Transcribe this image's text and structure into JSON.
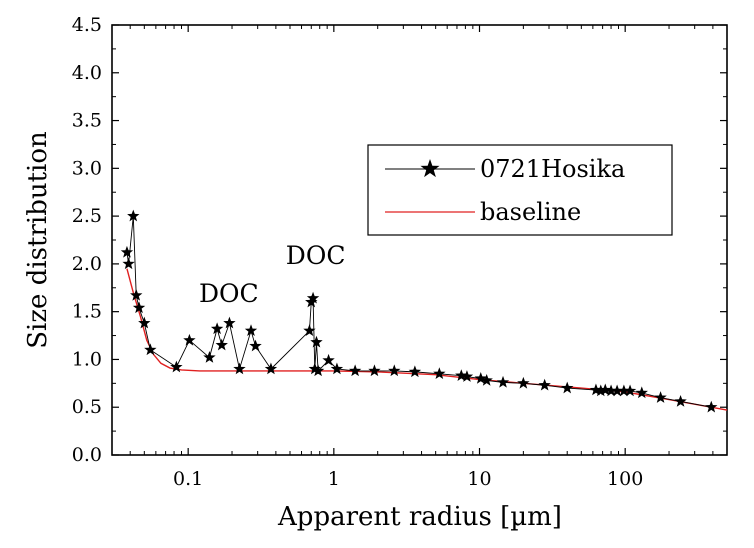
{
  "chart_data": {
    "type": "line",
    "xscale": "log",
    "xlabel": "Apparent radius [µm]",
    "ylabel": "Size distribution",
    "xlim": [
      0.03,
      500
    ],
    "ylim": [
      0.0,
      4.5
    ],
    "x_ticks": [
      0.1,
      1,
      10,
      100
    ],
    "x_tick_labels": [
      "0.1",
      "1",
      "10",
      "100"
    ],
    "y_ticks": [
      0.0,
      0.5,
      1.0,
      1.5,
      2.0,
      2.5,
      3.0,
      3.5,
      4.0,
      4.5
    ],
    "y_tick_labels": [
      "0.0",
      "0.5",
      "1.0",
      "1.5",
      "2.0",
      "2.5",
      "3.0",
      "3.5",
      "4.0",
      "4.5"
    ],
    "grid": false,
    "legend": {
      "position": "top-right",
      "entries": [
        "0721Hosika",
        "baseline"
      ]
    },
    "annotations": [
      {
        "text": "DOC",
        "x": 0.19,
        "y": 1.6
      },
      {
        "text": "DOC",
        "x": 0.75,
        "y": 2.0
      }
    ],
    "series": [
      {
        "name": "0721Hosika",
        "color": "#000000",
        "marker": "star",
        "x": [
          0.038,
          0.039,
          0.042,
          0.044,
          0.046,
          0.05,
          0.055,
          0.083,
          0.102,
          0.14,
          0.158,
          0.17,
          0.192,
          0.225,
          0.27,
          0.29,
          0.37,
          0.68,
          0.7,
          0.72,
          0.74,
          0.76,
          0.78,
          0.92,
          1.05,
          1.4,
          1.9,
          2.6,
          3.6,
          5.3,
          7.5,
          8.2,
          10.2,
          11.2,
          14.5,
          20,
          28,
          40,
          63,
          68,
          73,
          80,
          88,
          98,
          108,
          130,
          175,
          240,
          390
        ],
        "y": [
          2.12,
          2.0,
          2.5,
          1.67,
          1.54,
          1.38,
          1.1,
          0.92,
          1.2,
          1.02,
          1.32,
          1.15,
          1.38,
          0.9,
          1.3,
          1.14,
          0.9,
          1.3,
          1.6,
          1.64,
          0.9,
          1.18,
          0.88,
          0.99,
          0.9,
          0.88,
          0.88,
          0.88,
          0.87,
          0.85,
          0.83,
          0.82,
          0.8,
          0.78,
          0.76,
          0.75,
          0.73,
          0.7,
          0.68,
          0.67,
          0.68,
          0.67,
          0.67,
          0.67,
          0.67,
          0.65,
          0.6,
          0.56,
          0.5
        ]
      },
      {
        "name": "baseline",
        "color": "#e02020",
        "marker": "none",
        "x": [
          0.038,
          0.042,
          0.047,
          0.052,
          0.058,
          0.065,
          0.075,
          0.09,
          0.12,
          0.2,
          0.4,
          1,
          2,
          5,
          10,
          20,
          50,
          100,
          200,
          500
        ],
        "y": [
          1.95,
          1.7,
          1.45,
          1.2,
          1.05,
          0.96,
          0.91,
          0.89,
          0.88,
          0.88,
          0.88,
          0.88,
          0.87,
          0.84,
          0.79,
          0.75,
          0.7,
          0.66,
          0.58,
          0.47
        ]
      }
    ]
  }
}
